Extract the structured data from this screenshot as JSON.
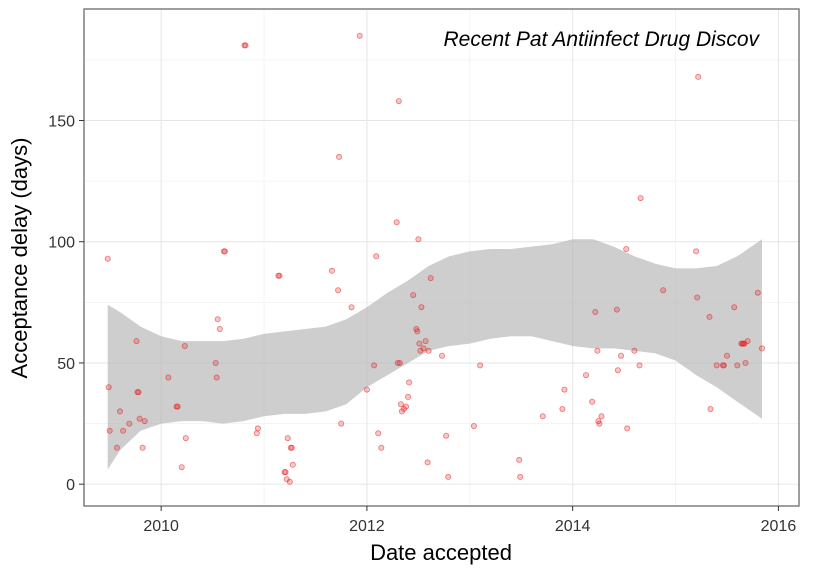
{
  "chart_data": {
    "type": "scatter",
    "annotation": "Recent Pat Antiinfect Drug Discov",
    "xlabel": "Date accepted",
    "ylabel": "Acceptance delay (days)",
    "x_ticks": [
      {
        "value": 2010,
        "label": "2010"
      },
      {
        "value": 2012,
        "label": "2012"
      },
      {
        "value": 2014,
        "label": "2014"
      },
      {
        "value": 2016,
        "label": "2016"
      }
    ],
    "y_ticks": [
      {
        "value": 0,
        "label": "0"
      },
      {
        "value": 50,
        "label": "50"
      },
      {
        "value": 100,
        "label": "100"
      },
      {
        "value": 150,
        "label": "150"
      }
    ],
    "xlim": [
      2009.25,
      2016.2
    ],
    "ylim": [
      -9,
      196
    ],
    "grid": true,
    "point_color": "#e41a1c",
    "band_color": "#b3b3b3",
    "points": [
      [
        2009.48,
        93
      ],
      [
        2009.49,
        40
      ],
      [
        2009.5,
        22
      ],
      [
        2009.57,
        15
      ],
      [
        2009.6,
        30
      ],
      [
        2009.63,
        22
      ],
      [
        2009.69,
        25
      ],
      [
        2009.76,
        59
      ],
      [
        2009.77,
        38
      ],
      [
        2009.78,
        38
      ],
      [
        2009.79,
        27
      ],
      [
        2009.82,
        15
      ],
      [
        2009.84,
        26
      ],
      [
        2010.07,
        44
      ],
      [
        2010.15,
        32
      ],
      [
        2010.16,
        32
      ],
      [
        2010.2,
        7
      ],
      [
        2010.23,
        57
      ],
      [
        2010.24,
        19
      ],
      [
        2010.53,
        50
      ],
      [
        2010.54,
        44
      ],
      [
        2010.55,
        68
      ],
      [
        2010.57,
        64
      ],
      [
        2010.61,
        96
      ],
      [
        2010.62,
        96
      ],
      [
        2010.81,
        181
      ],
      [
        2010.82,
        181
      ],
      [
        2010.93,
        21
      ],
      [
        2010.94,
        23
      ],
      [
        2011.14,
        86
      ],
      [
        2011.15,
        86
      ],
      [
        2011.2,
        5
      ],
      [
        2011.21,
        5
      ],
      [
        2011.22,
        2
      ],
      [
        2011.23,
        19
      ],
      [
        2011.25,
        1
      ],
      [
        2011.26,
        15
      ],
      [
        2011.27,
        15
      ],
      [
        2011.28,
        8
      ],
      [
        2011.66,
        88
      ],
      [
        2011.72,
        80
      ],
      [
        2011.73,
        135
      ],
      [
        2011.75,
        25
      ],
      [
        2011.85,
        73
      ],
      [
        2011.93,
        185
      ],
      [
        2012.0,
        39
      ],
      [
        2012.07,
        49
      ],
      [
        2012.09,
        94
      ],
      [
        2012.11,
        21
      ],
      [
        2012.14,
        15
      ],
      [
        2012.29,
        108
      ],
      [
        2012.3,
        50
      ],
      [
        2012.31,
        158
      ],
      [
        2012.32,
        50
      ],
      [
        2012.33,
        33
      ],
      [
        2012.34,
        30
      ],
      [
        2012.36,
        31
      ],
      [
        2012.38,
        32
      ],
      [
        2012.4,
        36
      ],
      [
        2012.41,
        42
      ],
      [
        2012.45,
        78
      ],
      [
        2012.48,
        64
      ],
      [
        2012.49,
        63
      ],
      [
        2012.5,
        101
      ],
      [
        2012.51,
        58
      ],
      [
        2012.52,
        55
      ],
      [
        2012.53,
        73
      ],
      [
        2012.55,
        56
      ],
      [
        2012.57,
        59
      ],
      [
        2012.59,
        9
      ],
      [
        2012.6,
        55
      ],
      [
        2012.62,
        85
      ],
      [
        2012.73,
        53
      ],
      [
        2012.77,
        20
      ],
      [
        2012.79,
        3
      ],
      [
        2013.04,
        24
      ],
      [
        2013.1,
        49
      ],
      [
        2013.48,
        10
      ],
      [
        2013.49,
        3
      ],
      [
        2013.71,
        28
      ],
      [
        2013.9,
        31
      ],
      [
        2013.92,
        39
      ],
      [
        2014.13,
        45
      ],
      [
        2014.19,
        34
      ],
      [
        2014.22,
        71
      ],
      [
        2014.24,
        55
      ],
      [
        2014.25,
        26
      ],
      [
        2014.26,
        25
      ],
      [
        2014.28,
        28
      ],
      [
        2014.43,
        72
      ],
      [
        2014.44,
        47
      ],
      [
        2014.47,
        53
      ],
      [
        2014.52,
        97
      ],
      [
        2014.53,
        23
      ],
      [
        2014.6,
        55
      ],
      [
        2014.65,
        49
      ],
      [
        2014.66,
        118
      ],
      [
        2014.88,
        80
      ],
      [
        2015.2,
        96
      ],
      [
        2015.21,
        77
      ],
      [
        2015.22,
        168
      ],
      [
        2015.33,
        69
      ],
      [
        2015.34,
        31
      ],
      [
        2015.4,
        49
      ],
      [
        2015.46,
        49
      ],
      [
        2015.47,
        49
      ],
      [
        2015.5,
        53
      ],
      [
        2015.57,
        73
      ],
      [
        2015.6,
        49
      ],
      [
        2015.64,
        58
      ],
      [
        2015.65,
        58
      ],
      [
        2015.66,
        58
      ],
      [
        2015.67,
        58
      ],
      [
        2015.68,
        50
      ],
      [
        2015.7,
        59
      ],
      [
        2015.8,
        79
      ],
      [
        2015.84,
        56
      ]
    ],
    "smooth_band": {
      "x": [
        2009.48,
        2009.6,
        2009.8,
        2010.0,
        2010.2,
        2010.4,
        2010.6,
        2010.8,
        2011.0,
        2011.2,
        2011.4,
        2011.6,
        2011.8,
        2012.0,
        2012.2,
        2012.4,
        2012.6,
        2012.8,
        2013.0,
        2013.2,
        2013.4,
        2013.6,
        2013.8,
        2014.0,
        2014.2,
        2014.4,
        2014.6,
        2014.8,
        2015.0,
        2015.2,
        2015.4,
        2015.6,
        2015.84
      ],
      "upper": [
        74,
        71,
        65,
        61,
        59,
        59,
        59,
        60,
        62,
        63,
        64,
        65,
        68,
        73,
        79,
        84,
        90,
        94,
        96,
        97,
        97,
        98,
        99,
        101,
        101,
        98,
        94,
        91,
        89,
        89,
        90,
        94,
        101
      ],
      "lower": [
        6,
        14,
        22,
        25,
        26,
        26,
        25,
        26,
        28,
        29,
        29,
        30,
        33,
        40,
        45,
        50,
        55,
        57,
        58,
        60,
        61,
        61,
        59,
        57,
        56,
        56,
        55,
        54,
        51,
        45,
        40,
        34,
        27
      ]
    }
  }
}
